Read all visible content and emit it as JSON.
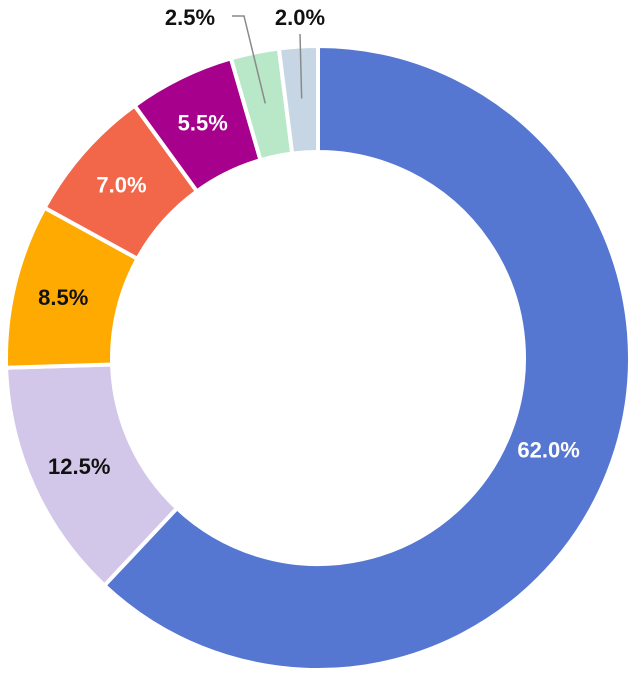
{
  "chart_data": {
    "type": "pie",
    "donut": true,
    "title": "",
    "slices": [
      {
        "label": "62.0%",
        "value": 62.0,
        "color": "#5577d1",
        "label_color": "#ffffff"
      },
      {
        "label": "12.5%",
        "value": 12.5,
        "color": "#d2c7e8",
        "label_color": "#111111"
      },
      {
        "label": "8.5%",
        "value": 8.5,
        "color": "#ffaa00",
        "label_color": "#111111"
      },
      {
        "label": "7.0%",
        "value": 7.0,
        "color": "#f2664a",
        "label_color": "#ffffff"
      },
      {
        "label": "5.5%",
        "value": 5.5,
        "color": "#a6008c",
        "label_color": "#ffffff"
      },
      {
        "label": "2.5%",
        "value": 2.5,
        "color": "#b8e8c8",
        "label_color": "#111111"
      },
      {
        "label": "2.0%",
        "value": 2.0,
        "color": "#c6d6e4",
        "label_color": "#111111"
      }
    ],
    "start_angle_deg": 0,
    "direction": "clockwise",
    "legend": "none"
  }
}
